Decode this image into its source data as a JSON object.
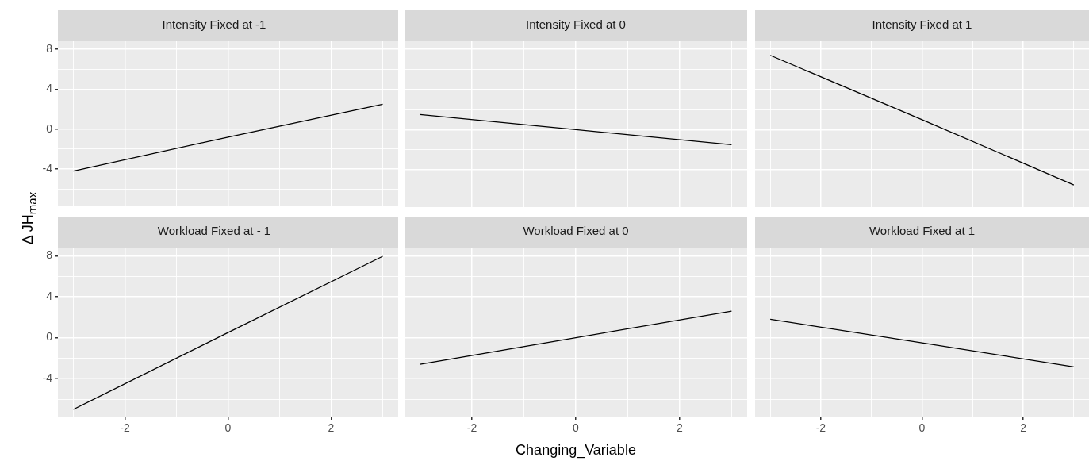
{
  "chart_data": [
    {
      "type": "line",
      "title": "Intensity Fixed at -1",
      "ylabel": "Δ JH$_{max}$",
      "x": [
        -3,
        0,
        3
      ],
      "series": [
        {
          "color": "#000000",
          "values": [
            -4.2,
            -0.8,
            2.5
          ]
        }
      ],
      "xlim": [
        -3.3,
        3.3
      ],
      "ylim": [
        -7.7,
        8.8
      ],
      "xticks": [
        {
          "value": -3,
          "label": null
        },
        -2,
        {
          "value": -1,
          "label": null
        },
        0,
        {
          "value": 1,
          "label": null
        },
        2,
        {
          "value": 3,
          "label": null
        }
      ],
      "yticks": [
        {
          "value": -6,
          "label": null
        },
        -4,
        {
          "value": -2,
          "label": null
        },
        0,
        {
          "value": 2,
          "label": null
        },
        4,
        {
          "value": 6,
          "label": null
        },
        8
      ],
      "grid": true,
      "tick_labels": "y"
    },
    {
      "type": "line",
      "title": "Intensity Fixed at 0",
      "x": [
        -3,
        0,
        3
      ],
      "series": [
        {
          "color": "#000000",
          "values": [
            1.5,
            0,
            -1.5
          ]
        }
      ],
      "xlim": [
        -3.3,
        3.3
      ],
      "ylim": [
        -7.7,
        8.8
      ],
      "xticks": [
        {
          "value": -3,
          "label": null
        },
        -2,
        {
          "value": -1,
          "label": null
        },
        0,
        {
          "value": 1,
          "label": null
        },
        2,
        {
          "value": 3,
          "label": null
        }
      ],
      "yticks": [
        {
          "value": -6,
          "label": null
        },
        -4,
        {
          "value": -2,
          "label": null
        },
        0,
        {
          "value": 2,
          "label": null
        },
        4,
        {
          "value": 6,
          "label": null
        },
        8
      ],
      "grid": true,
      "tick_labels": false
    },
    {
      "type": "line",
      "title": "Intensity Fixed at 1",
      "x": [
        -3,
        0,
        3
      ],
      "series": [
        {
          "color": "#000000",
          "values": [
            7.4,
            1.0,
            -5.5
          ]
        }
      ],
      "xlim": [
        -3.3,
        3.3
      ],
      "ylim": [
        -7.7,
        8.8
      ],
      "xticks": [
        {
          "value": -3,
          "label": null
        },
        -2,
        {
          "value": -1,
          "label": null
        },
        0,
        {
          "value": 1,
          "label": null
        },
        2,
        {
          "value": 3,
          "label": null
        }
      ],
      "yticks": [
        {
          "value": -6,
          "label": null
        },
        -4,
        {
          "value": -2,
          "label": null
        },
        0,
        {
          "value": 2,
          "label": null
        },
        4,
        {
          "value": 6,
          "label": null
        },
        8
      ],
      "grid": true,
      "tick_labels": false
    },
    {
      "type": "line",
      "title": "Workload Fixed at - 1",
      "x": [
        -3,
        0,
        3
      ],
      "series": [
        {
          "color": "#000000",
          "values": [
            -7.0,
            0.5,
            7.95
          ]
        }
      ],
      "xlim": [
        -3.3,
        3.3
      ],
      "ylim": [
        -7.7,
        8.8
      ],
      "xticks": [
        {
          "value": -3,
          "label": null
        },
        -2,
        {
          "value": -1,
          "label": null
        },
        0,
        {
          "value": 1,
          "label": null
        },
        2,
        {
          "value": 3,
          "label": null
        }
      ],
      "yticks": [
        {
          "value": -6,
          "label": null
        },
        -4,
        {
          "value": -2,
          "label": null
        },
        0,
        {
          "value": 2,
          "label": null
        },
        4,
        {
          "value": 6,
          "label": null
        },
        8
      ],
      "grid": true
    },
    {
      "type": "line",
      "title": "Workload Fixed at 0",
      "xlabel": "Changing_Variable",
      "x": [
        -3,
        0,
        3
      ],
      "series": [
        {
          "color": "#000000",
          "values": [
            -2.6,
            0,
            2.6
          ]
        }
      ],
      "xlim": [
        -3.3,
        3.3
      ],
      "ylim": [
        -7.7,
        8.8
      ],
      "xticks": [
        {
          "value": -3,
          "label": null
        },
        -2,
        {
          "value": -1,
          "label": null
        },
        0,
        {
          "value": 1,
          "label": null
        },
        2,
        {
          "value": 3,
          "label": null
        }
      ],
      "yticks": [
        {
          "value": -6,
          "label": null
        },
        -4,
        {
          "value": -2,
          "label": null
        },
        0,
        {
          "value": 2,
          "label": null
        },
        4,
        {
          "value": 6,
          "label": null
        },
        8
      ],
      "grid": true,
      "tick_labels": "x"
    },
    {
      "type": "line",
      "title": "Workload Fixed at 1",
      "x": [
        -3,
        0,
        3
      ],
      "series": [
        {
          "color": "#000000",
          "values": [
            1.8,
            -0.5,
            -2.85
          ]
        }
      ],
      "xlim": [
        -3.3,
        3.3
      ],
      "ylim": [
        -7.7,
        8.8
      ],
      "xticks": [
        {
          "value": -3,
          "label": null
        },
        -2,
        {
          "value": -1,
          "label": null
        },
        0,
        {
          "value": 1,
          "label": null
        },
        2,
        {
          "value": 3,
          "label": null
        }
      ],
      "yticks": [
        {
          "value": -6,
          "label": null
        },
        -4,
        {
          "value": -2,
          "label": null
        },
        0,
        {
          "value": 2,
          "label": null
        },
        4,
        {
          "value": 6,
          "label": null
        },
        8
      ],
      "grid": true,
      "tick_labels": "x"
    }
  ]
}
